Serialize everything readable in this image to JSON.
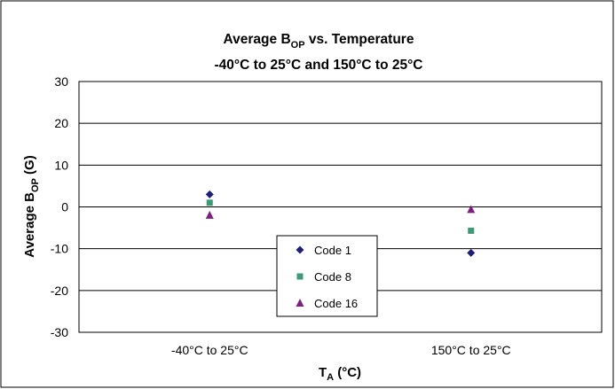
{
  "chart_data": {
    "type": "scatter",
    "title_line1_main": "Average B",
    "title_line1_sub": "OP",
    "title_line1_rest": " vs. Temperature",
    "title_line2": "-40°C to 25°C and 150°C to 25°C",
    "xlabel_main": "T",
    "xlabel_sub": "A",
    "xlabel_rest": " (°C)",
    "ylabel_main": "Average B",
    "ylabel_sub": "OP",
    "ylabel_rest": " (G)",
    "categories": [
      "-40°C to 25°C",
      "150°C to 25°C"
    ],
    "ylim": [
      -30,
      30
    ],
    "ytick_step": 10,
    "grid": true,
    "legend_position": "center",
    "series": [
      {
        "name": "Code 1",
        "values": [
          3,
          -11
        ],
        "marker": "diamond",
        "color": "#1F1F7A"
      },
      {
        "name": "Code 8",
        "values": [
          1,
          -5.7
        ],
        "marker": "square",
        "color": "#3C9A78"
      },
      {
        "name": "Code 16",
        "values": [
          -2,
          -0.6
        ],
        "marker": "triangle",
        "color": "#7F1F7F"
      }
    ]
  }
}
